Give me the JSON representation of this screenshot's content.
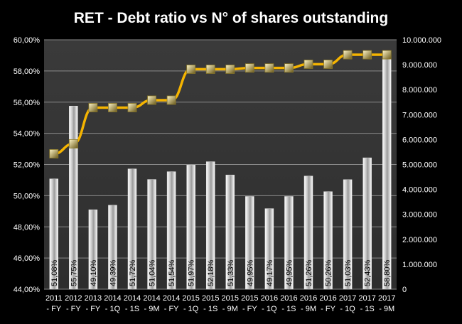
{
  "chart_data": {
    "type": "bar",
    "title": "RET - Debt ratio vs N° of shares outstanding",
    "categories": [
      [
        "2011",
        "- FY"
      ],
      [
        "2012",
        "- FY"
      ],
      [
        "2013",
        "- FY"
      ],
      [
        "2014",
        "- 1Q"
      ],
      [
        "2014",
        "- 1S"
      ],
      [
        "2014",
        "- 9M"
      ],
      [
        "2014",
        "- FY"
      ],
      [
        "2015",
        "- 1Q"
      ],
      [
        "2015",
        "- 1S"
      ],
      [
        "2015",
        "- 9M"
      ],
      [
        "2015",
        "- FY"
      ],
      [
        "2016",
        "- 1Q"
      ],
      [
        "2016",
        "- 1S"
      ],
      [
        "2016",
        "- 9M"
      ],
      [
        "2016",
        "- FY"
      ],
      [
        "2017",
        "- 1Q"
      ],
      [
        "2017",
        "- 1S"
      ],
      [
        "2017",
        "- 9M"
      ]
    ],
    "series": [
      {
        "type": "bar",
        "axis": "left",
        "values": [
          51.08,
          55.75,
          49.1,
          49.39,
          51.72,
          51.04,
          51.54,
          51.97,
          52.18,
          51.33,
          49.95,
          49.17,
          49.95,
          51.26,
          50.26,
          51.03,
          52.43,
          58.8
        ],
        "labels": [
          "51,08%",
          "55,75%",
          "49,10%",
          "49,39%",
          "51,72%",
          "51,04%",
          "51,54%",
          "51,97%",
          "52,18%",
          "51,33%",
          "49,95%",
          "49,17%",
          "49,95%",
          "51,26%",
          "50,26%",
          "51,03%",
          "52,43%",
          "58,80%"
        ]
      },
      {
        "type": "line",
        "axis": "right",
        "values": [
          5430000,
          5830000,
          7280000,
          7280000,
          7280000,
          7580000,
          7580000,
          8820000,
          8820000,
          8820000,
          8870000,
          8870000,
          8870000,
          9020000,
          9020000,
          9400000,
          9400000,
          9400000
        ]
      }
    ],
    "y_left": {
      "min": 44,
      "max": 60,
      "step": 2,
      "tick_labels": [
        "44,00%",
        "46,00%",
        "48,00%",
        "50,00%",
        "52,00%",
        "54,00%",
        "56,00%",
        "58,00%",
        "60,00%"
      ]
    },
    "y_right": {
      "min": 0,
      "max": 10000000,
      "step": 1000000,
      "tick_labels": [
        "0",
        "1.000.000",
        "2.000.000",
        "3.000.000",
        "4.000.000",
        "5.000.000",
        "6.000.000",
        "7.000.000",
        "8.000.000",
        "9.000.000",
        "10.000.000"
      ]
    },
    "grid": true,
    "legend": "none",
    "colors": {
      "background": "#000000",
      "plot_background": "#3a3a3a",
      "gridline": "#8a8a8a",
      "bar_edge": "#ffffff",
      "bar_center": "#9a9a9a",
      "line": "#f5b400",
      "marker_light": "#fff6c8",
      "marker_dark": "#6b5a1a"
    }
  }
}
